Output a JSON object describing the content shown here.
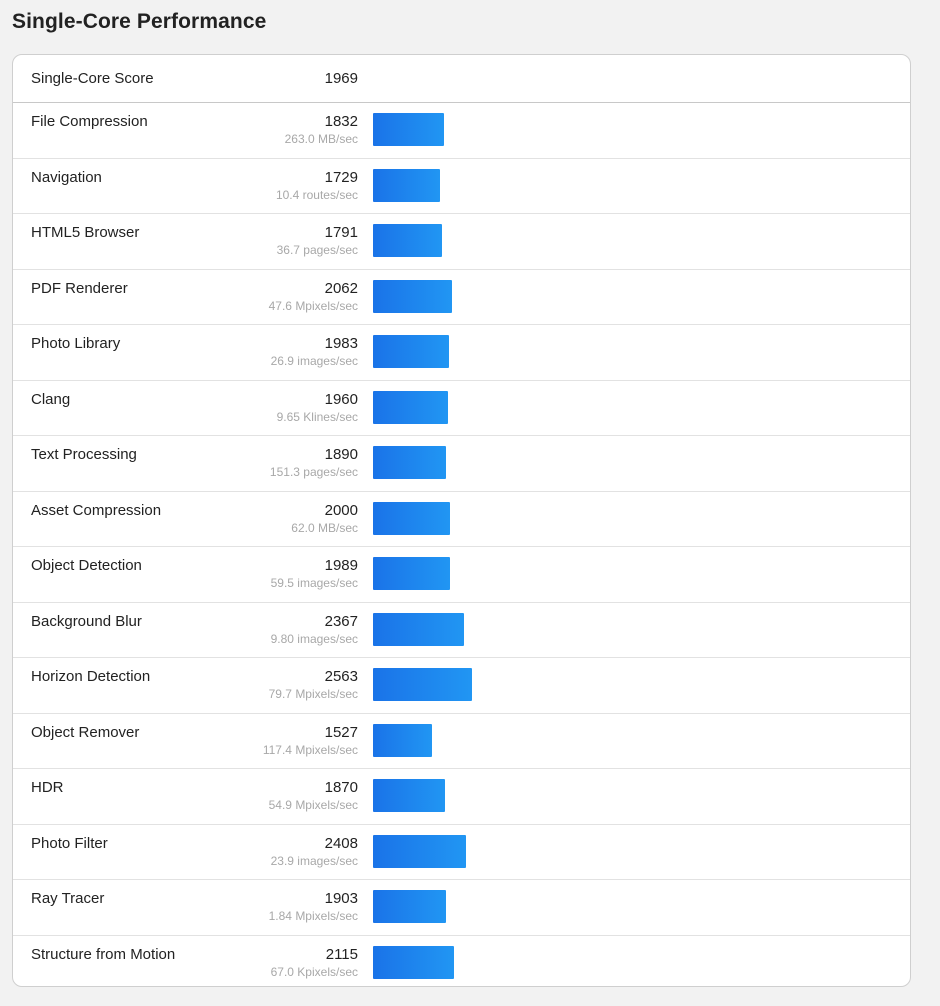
{
  "page": {
    "title": "Single-Core Performance"
  },
  "summary": {
    "label": "Single-Core Score",
    "value": "1969"
  },
  "colors": {
    "bar_start": "#1a73e8",
    "bar_end": "#2196f3"
  },
  "benchmarks": [
    {
      "name": "File Compression",
      "score": "1832",
      "unit": "263.0 MB/sec"
    },
    {
      "name": "Navigation",
      "score": "1729",
      "unit": "10.4 routes/sec"
    },
    {
      "name": "HTML5 Browser",
      "score": "1791",
      "unit": "36.7 pages/sec"
    },
    {
      "name": "PDF Renderer",
      "score": "2062",
      "unit": "47.6 Mpixels/sec"
    },
    {
      "name": "Photo Library",
      "score": "1983",
      "unit": "26.9 images/sec"
    },
    {
      "name": "Clang",
      "score": "1960",
      "unit": "9.65 Klines/sec"
    },
    {
      "name": "Text Processing",
      "score": "1890",
      "unit": "151.3 pages/sec"
    },
    {
      "name": "Asset Compression",
      "score": "2000",
      "unit": "62.0 MB/sec"
    },
    {
      "name": "Object Detection",
      "score": "1989",
      "unit": "59.5 images/sec"
    },
    {
      "name": "Background Blur",
      "score": "2367",
      "unit": "9.80 images/sec"
    },
    {
      "name": "Horizon Detection",
      "score": "2563",
      "unit": "79.7 Mpixels/sec"
    },
    {
      "name": "Object Remover",
      "score": "1527",
      "unit": "117.4 Mpixels/sec"
    },
    {
      "name": "HDR",
      "score": "1870",
      "unit": "54.9 Mpixels/sec"
    },
    {
      "name": "Photo Filter",
      "score": "2408",
      "unit": "23.9 images/sec"
    },
    {
      "name": "Ray Tracer",
      "score": "1903",
      "unit": "1.84 Mpixels/sec"
    },
    {
      "name": "Structure from Motion",
      "score": "2115",
      "unit": "67.0 Kpixels/sec"
    }
  ]
}
